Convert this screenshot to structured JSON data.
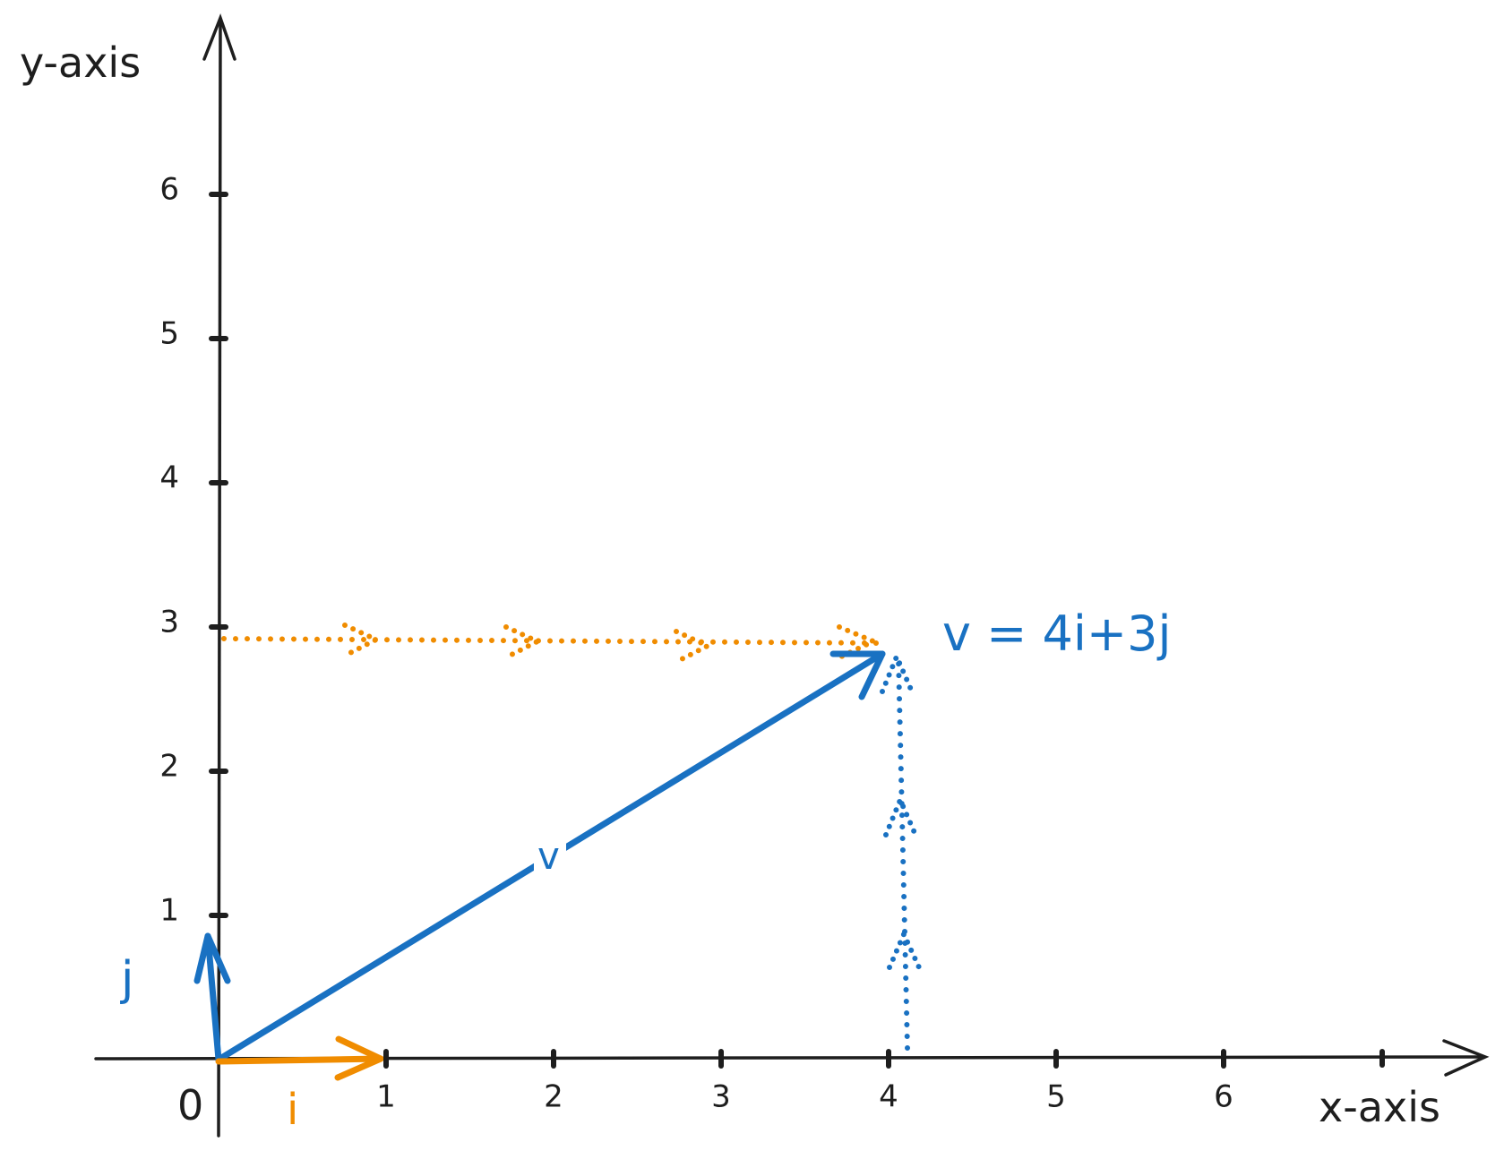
{
  "axes": {
    "x_label": "x-axis",
    "y_label": "y-axis",
    "origin": "0",
    "x_ticks": [
      1,
      2,
      3,
      4,
      5,
      6
    ],
    "y_ticks": [
      1,
      2,
      3,
      4,
      5,
      6
    ]
  },
  "vectors": {
    "i_label": "i",
    "j_label": "j",
    "v_label": "v",
    "equation": "v = 4i+3j"
  }
}
